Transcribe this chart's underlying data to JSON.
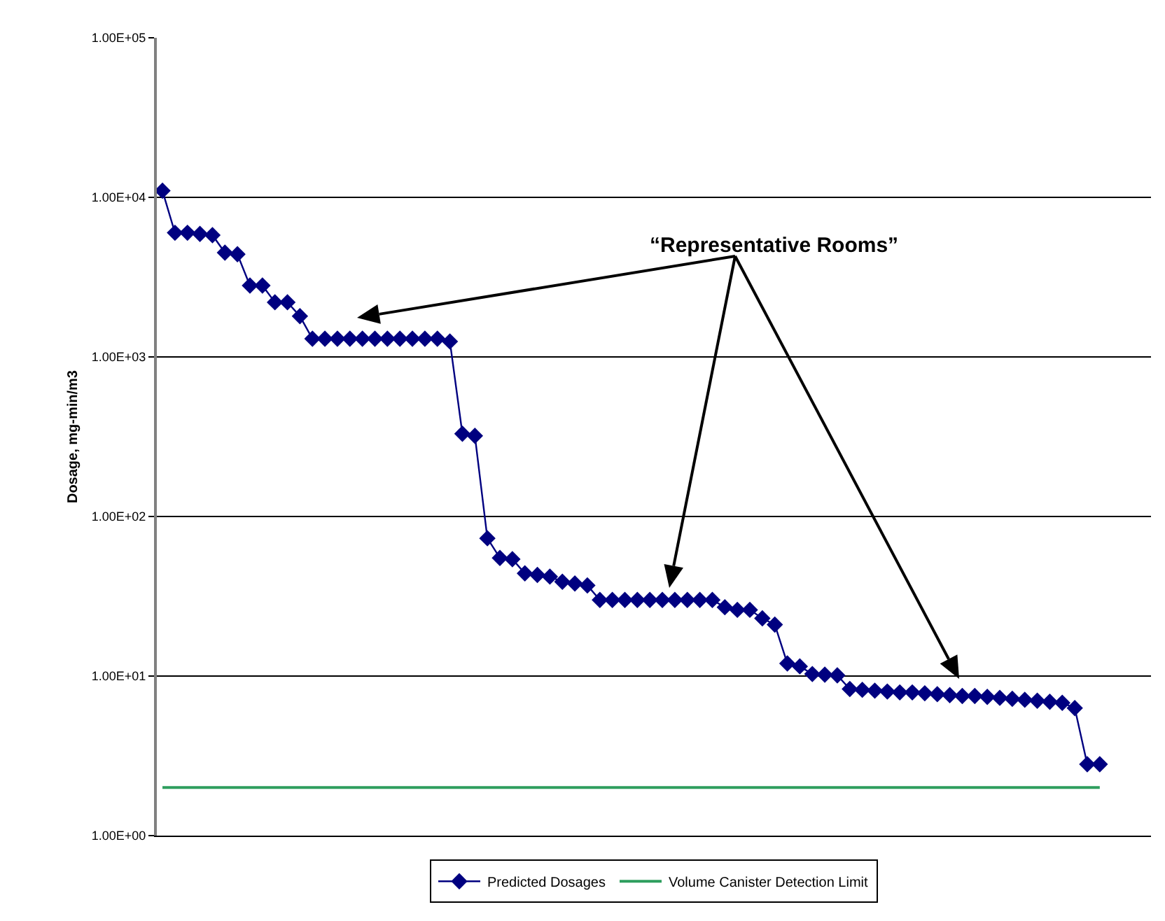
{
  "chart_data": {
    "type": "line",
    "ylabel": "Dosage, mg-min/m3",
    "categories": [
      null,
      null,
      null,
      null,
      null,
      null,
      null,
      null,
      null,
      null,
      null,
      null,
      null,
      null,
      null,
      null,
      null,
      null,
      null,
      null,
      null,
      null,
      null,
      null,
      null,
      null,
      null,
      null,
      null,
      null,
      null,
      null,
      null,
      null,
      null,
      null,
      null,
      null,
      null,
      null,
      null,
      null,
      null,
      null,
      null,
      null,
      null,
      null,
      null,
      null,
      null,
      null,
      null,
      null,
      null,
      null,
      null,
      null,
      null,
      null,
      null,
      null,
      null,
      null,
      null,
      null,
      null,
      null,
      null,
      null,
      null,
      null,
      null,
      null,
      null,
      null
    ],
    "series": [
      {
        "name": "Predicted Dosages",
        "color": "#000080",
        "marker": "diamond",
        "values": [
          11000,
          6000,
          6000,
          5900,
          5800,
          4500,
          4400,
          2800,
          2800,
          2200,
          2200,
          1800,
          1300,
          1300,
          1300,
          1300,
          1300,
          1300,
          1300,
          1300,
          1300,
          1300,
          1300,
          1250,
          330,
          320,
          73,
          55,
          54,
          44,
          43,
          42,
          39,
          38,
          37,
          30,
          30,
          30,
          30,
          30,
          30,
          30,
          30,
          30,
          30,
          27,
          26,
          26,
          23,
          21,
          12,
          11.5,
          10.3,
          10.2,
          10.1,
          8.3,
          8.2,
          8.1,
          8.0,
          7.9,
          7.9,
          7.8,
          7.7,
          7.6,
          7.5,
          7.5,
          7.4,
          7.3,
          7.2,
          7.1,
          7.0,
          6.9,
          6.8,
          6.3,
          2.8,
          2.8
        ]
      },
      {
        "name": "Volume Canister Detection Limit",
        "color": "#2e9e5e",
        "marker": "none",
        "values": [
          2,
          2,
          2,
          2,
          2,
          2,
          2,
          2,
          2,
          2,
          2,
          2,
          2,
          2,
          2,
          2,
          2,
          2,
          2,
          2,
          2,
          2,
          2,
          2,
          2,
          2,
          2,
          2,
          2,
          2,
          2,
          2,
          2,
          2,
          2,
          2,
          2,
          2,
          2,
          2,
          2,
          2,
          2,
          2,
          2,
          2,
          2,
          2,
          2,
          2,
          2,
          2,
          2,
          2,
          2,
          2,
          2,
          2,
          2,
          2,
          2,
          2,
          2,
          2,
          2,
          2,
          2,
          2,
          2,
          2,
          2,
          2,
          2,
          2,
          2,
          2
        ]
      }
    ],
    "log": true,
    "ylim": [
      1,
      100000
    ],
    "yticks": [
      {
        "value": 1,
        "label": "1.00E+00"
      },
      {
        "value": 10,
        "label": "1.00E+01"
      },
      {
        "value": 100,
        "label": "1.00E+02"
      },
      {
        "value": 1000,
        "label": "1.00E+03"
      },
      {
        "value": 10000,
        "label": "1.00E+04"
      },
      {
        "value": 100000,
        "label": "1.00E+05"
      }
    ],
    "grid": "y",
    "legend": "bottom",
    "annotations": [
      "“Representative Rooms”"
    ]
  }
}
